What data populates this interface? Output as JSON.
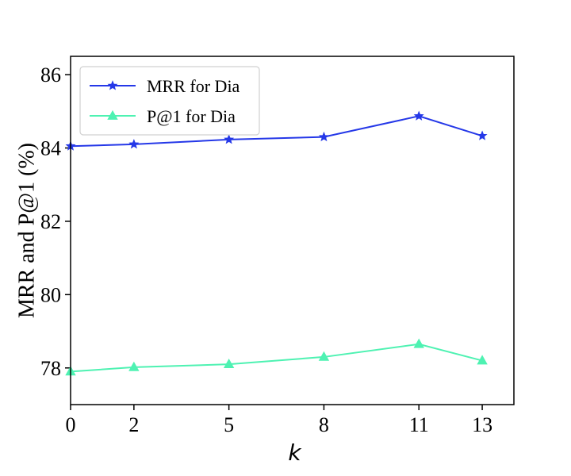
{
  "chart_data": {
    "type": "line",
    "x": [
      0,
      2,
      5,
      8,
      11,
      13
    ],
    "x_ticks": [
      "0",
      "2",
      "5",
      "8",
      "11",
      "13"
    ],
    "y_ticks": [
      "78",
      "80",
      "82",
      "84",
      "86"
    ],
    "xlabel": "k",
    "ylabel": "MRR and P@1 (%)",
    "xlim": [
      0,
      14
    ],
    "ylim": [
      77.0,
      86.5
    ],
    "grid": false,
    "legend_position": "top-left",
    "series": [
      {
        "name": "MRR for Dia",
        "color": "#2538e8",
        "marker": "star",
        "values": [
          84.05,
          84.1,
          84.23,
          84.3,
          84.87,
          84.33
        ]
      },
      {
        "name": "P@1 for Dia",
        "color": "#4ef2b2",
        "marker": "triangle",
        "values": [
          77.9,
          78.02,
          78.1,
          78.3,
          78.65,
          78.2
        ]
      }
    ]
  }
}
